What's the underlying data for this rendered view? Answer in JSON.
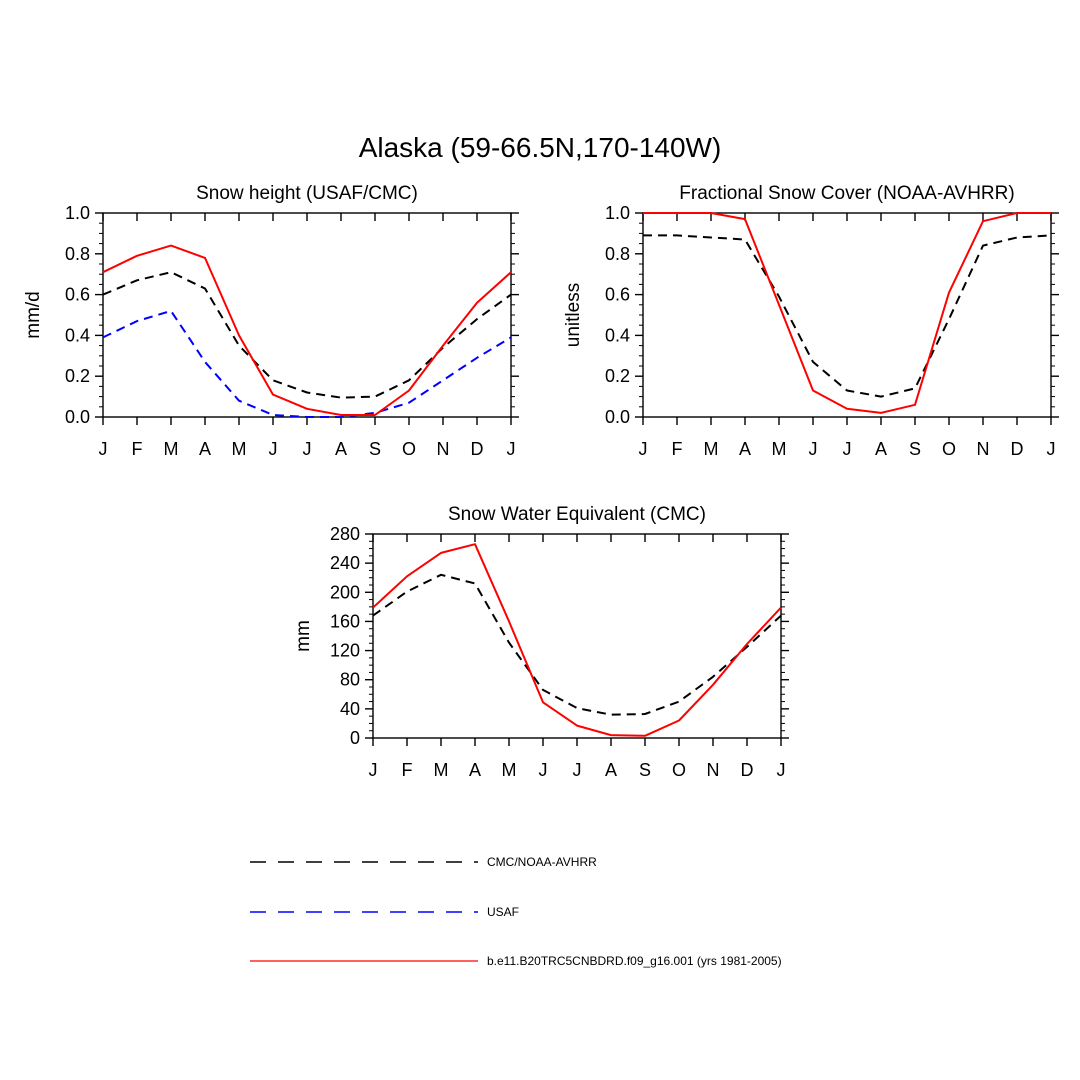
{
  "title": "Alaska (59-66.5N,170-140W)",
  "legend": [
    {
      "name": "CMC/NOAA-AVHRR",
      "color": "#000000",
      "dash": "dashed"
    },
    {
      "name": "USAF",
      "color": "#0000ff",
      "dash": "dashed"
    },
    {
      "name": "b.e11.B20TRC5CNBDRD.f09_g16.001 (yrs 1981-2005)",
      "color": "#ff0000",
      "dash": "solid"
    }
  ],
  "chart_data": [
    {
      "type": "line",
      "title": "Snow height (USAF/CMC)",
      "xlabel": "",
      "ylabel": "mm/d",
      "categories": [
        "J",
        "F",
        "M",
        "A",
        "M",
        "J",
        "J",
        "A",
        "S",
        "O",
        "N",
        "D",
        "J"
      ],
      "ylim": [
        0,
        1
      ],
      "yticks": [
        "0.0",
        "0.2",
        "0.4",
        "0.6",
        "0.8",
        "1.0"
      ],
      "series": [
        {
          "name": "CMC/NOAA-AVHRR",
          "color": "#000000",
          "dash": "dashed",
          "values": [
            0.6,
            0.67,
            0.71,
            0.63,
            0.35,
            0.18,
            0.12,
            0.095,
            0.1,
            0.18,
            0.34,
            0.48,
            0.6
          ]
        },
        {
          "name": "USAF",
          "color": "#0000ff",
          "dash": "dashed",
          "values": [
            0.39,
            0.47,
            0.52,
            0.27,
            0.08,
            0.01,
            0.0,
            0.0,
            0.02,
            0.07,
            0.18,
            0.29,
            0.39
          ]
        },
        {
          "name": "b.e11.B20TRC5CNBDRD.f09_g16.001 (yrs 1981-2005)",
          "color": "#ff0000",
          "dash": "solid",
          "values": [
            0.71,
            0.79,
            0.84,
            0.78,
            0.4,
            0.11,
            0.04,
            0.01,
            0.01,
            0.13,
            0.35,
            0.56,
            0.71
          ]
        }
      ]
    },
    {
      "type": "line",
      "title": "Fractional Snow Cover (NOAA-AVHRR)",
      "xlabel": "",
      "ylabel": "unitless",
      "categories": [
        "J",
        "F",
        "M",
        "A",
        "M",
        "J",
        "J",
        "A",
        "S",
        "O",
        "N",
        "D",
        "J"
      ],
      "ylim": [
        0,
        1
      ],
      "yticks": [
        "0.0",
        "0.2",
        "0.4",
        "0.6",
        "0.8",
        "1.0"
      ],
      "series": [
        {
          "name": "CMC/NOAA-AVHRR",
          "color": "#000000",
          "dash": "dashed",
          "values": [
            0.89,
            0.89,
            0.88,
            0.87,
            0.59,
            0.27,
            0.13,
            0.1,
            0.14,
            0.48,
            0.84,
            0.88,
            0.89
          ]
        },
        {
          "name": "b.e11.B20TRC5CNBDRD.f09_g16.001 (yrs 1981-2005)",
          "color": "#ff0000",
          "dash": "solid",
          "values": [
            1.0,
            1.0,
            1.0,
            0.97,
            0.55,
            0.13,
            0.04,
            0.02,
            0.06,
            0.61,
            0.96,
            1.0,
            1.0
          ]
        }
      ]
    },
    {
      "type": "line",
      "title": "Snow Water Equivalent (CMC)",
      "xlabel": "",
      "ylabel": "mm",
      "categories": [
        "J",
        "F",
        "M",
        "A",
        "M",
        "J",
        "J",
        "A",
        "S",
        "O",
        "N",
        "D",
        "J"
      ],
      "ylim": [
        0,
        280
      ],
      "yticks": [
        "0",
        "40",
        "80",
        "120",
        "160",
        "200",
        "240",
        "280"
      ],
      "series": [
        {
          "name": "CMC/NOAA-AVHRR",
          "color": "#000000",
          "dash": "dashed",
          "values": [
            168,
            201,
            224,
            212,
            131,
            66,
            41,
            32,
            33,
            50,
            84,
            125,
            168
          ]
        },
        {
          "name": "b.e11.B20TRC5CNBDRD.f09_g16.001 (yrs 1981-2005)",
          "color": "#ff0000",
          "dash": "solid",
          "values": [
            179,
            222,
            254,
            266,
            160,
            49,
            17,
            4,
            3,
            24,
            73,
            129,
            179
          ]
        }
      ]
    }
  ]
}
